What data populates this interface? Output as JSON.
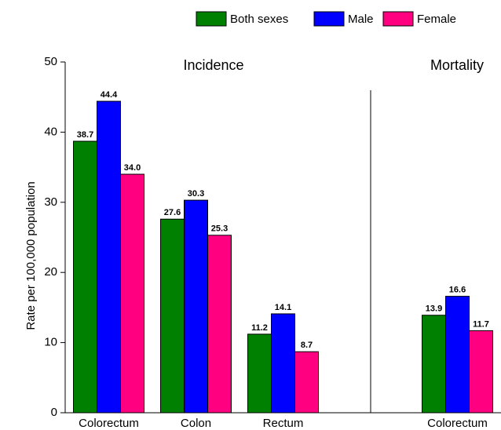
{
  "chart_data": {
    "type": "bar",
    "y_label": "Rate per 100,000 population",
    "annotations": [
      "Incidence",
      "Mortality"
    ],
    "categories": [
      "Colorectum",
      "Colon",
      "Rectum",
      null,
      "Colorectum"
    ],
    "series": [
      {
        "name": "Both sexes",
        "color": "#008000",
        "values": [
          38.7,
          27.6,
          11.2,
          null,
          13.9
        ],
        "value_labels": [
          "38.7",
          "27.6",
          "11.2",
          null,
          "13.9"
        ]
      },
      {
        "name": "Male",
        "color": "#0000ff",
        "values": [
          44.4,
          30.3,
          14.1,
          null,
          16.6
        ],
        "value_labels": [
          "44.4",
          "30.3",
          "14.1",
          null,
          "16.6"
        ]
      },
      {
        "name": "Female",
        "color": "#ff0080",
        "values": [
          34.0,
          25.3,
          8.7,
          null,
          11.7
        ],
        "value_labels": [
          "34.0",
          "25.3",
          "8.7",
          null,
          "11.7"
        ]
      }
    ],
    "ylim": [
      0,
      50
    ],
    "yticks": [
      0,
      10,
      20,
      30,
      40,
      50
    ],
    "legend": "top"
  }
}
